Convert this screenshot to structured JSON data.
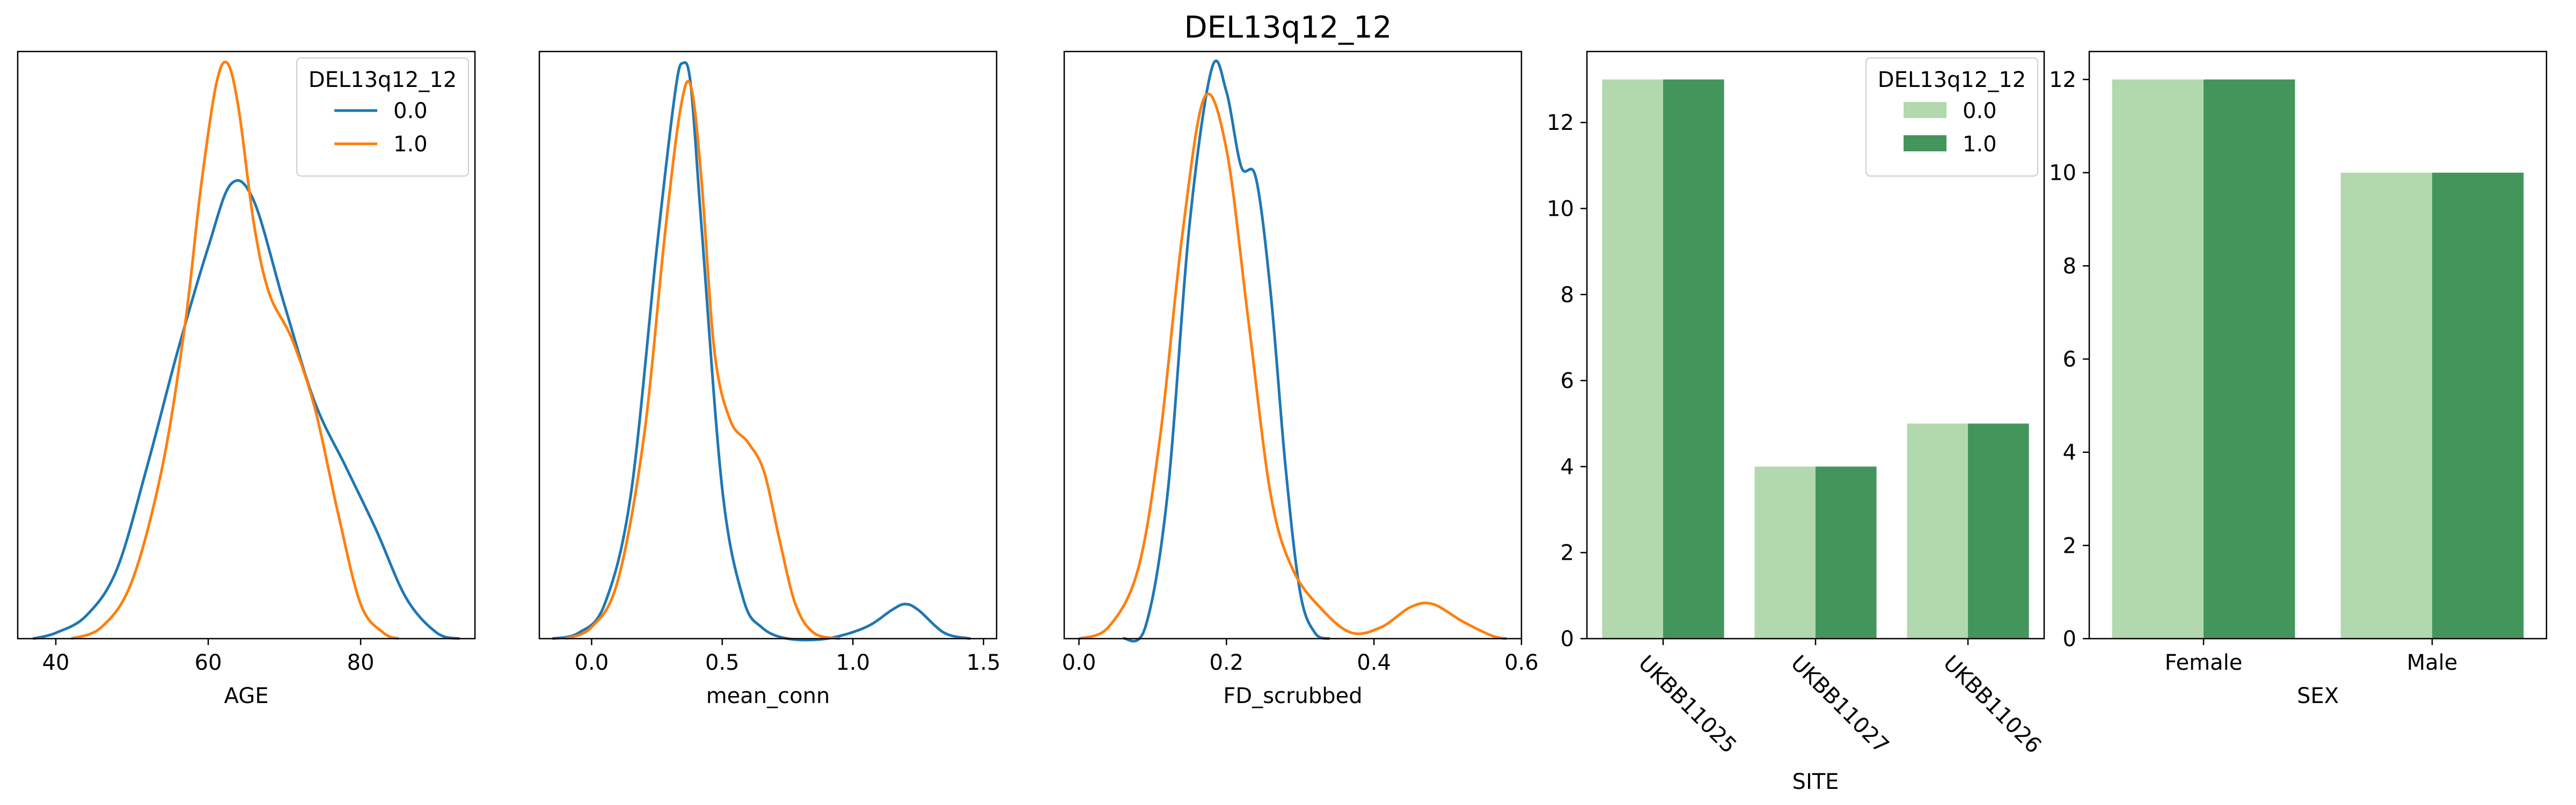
{
  "figure": {
    "title": "DEL13q12_12"
  },
  "colors": {
    "kde_0": "#1f77b4",
    "kde_1": "#ff7f0e",
    "bar_0": "#b2d8ae",
    "bar_1": "#44955b"
  },
  "chart_data": [
    {
      "type": "line",
      "xlabel": "AGE",
      "ylabel": "",
      "xlim": [
        35,
        95
      ],
      "xticks": [
        40,
        60,
        80
      ],
      "ylim": [
        0,
        1.02
      ],
      "legend": {
        "title": "DEL13q12_12",
        "placement": "top-right",
        "entries": [
          "0.0",
          "1.0"
        ]
      },
      "series": [
        {
          "name": "0.0",
          "x": [
            37,
            40,
            44,
            48,
            52,
            56,
            60,
            63,
            66,
            70,
            74,
            78,
            82,
            86,
            90,
            93
          ],
          "y": [
            0.0,
            0.01,
            0.04,
            0.12,
            0.3,
            0.5,
            0.68,
            0.79,
            0.76,
            0.58,
            0.41,
            0.3,
            0.19,
            0.07,
            0.01,
            0.0
          ]
        },
        {
          "name": "1.0",
          "x": [
            42,
            46,
            50,
            54,
            57,
            59,
            61,
            62.5,
            64,
            66,
            68,
            71,
            74,
            77,
            80,
            83,
            85
          ],
          "y": [
            0.0,
            0.02,
            0.1,
            0.3,
            0.55,
            0.78,
            0.96,
            1.0,
            0.92,
            0.72,
            0.6,
            0.52,
            0.4,
            0.22,
            0.06,
            0.01,
            0.0
          ]
        }
      ]
    },
    {
      "type": "line",
      "xlabel": "mean_conn",
      "ylabel": "",
      "xlim": [
        -0.2,
        1.55
      ],
      "xticks": [
        0.0,
        0.5,
        1.0,
        1.5
      ],
      "ylim": [
        0,
        1.02
      ],
      "series": [
        {
          "name": "0.0",
          "x": [
            -0.15,
            -0.05,
            0.05,
            0.15,
            0.25,
            0.32,
            0.35,
            0.38,
            0.42,
            0.5,
            0.58,
            0.65,
            0.75,
            0.9,
            1.05,
            1.15,
            1.2,
            1.25,
            1.35,
            1.45
          ],
          "y": [
            0.0,
            0.01,
            0.06,
            0.25,
            0.68,
            0.95,
            1.0,
            0.96,
            0.72,
            0.26,
            0.07,
            0.02,
            0.0,
            0.0,
            0.02,
            0.05,
            0.06,
            0.05,
            0.01,
            0.0
          ]
        },
        {
          "name": "1.0",
          "x": [
            -0.1,
            0.0,
            0.1,
            0.2,
            0.28,
            0.34,
            0.38,
            0.42,
            0.47,
            0.53,
            0.6,
            0.66,
            0.72,
            0.78,
            0.85,
            0.95
          ],
          "y": [
            0.0,
            0.02,
            0.1,
            0.35,
            0.7,
            0.92,
            0.96,
            0.8,
            0.5,
            0.38,
            0.34,
            0.29,
            0.17,
            0.06,
            0.01,
            0.0
          ]
        }
      ]
    },
    {
      "type": "line",
      "xlabel": "FD_scrubbed",
      "ylabel": "",
      "xlim": [
        -0.02,
        0.6
      ],
      "xticks": [
        0.0,
        0.2,
        0.4,
        0.6
      ],
      "ylim": [
        0,
        1.02
      ],
      "series": [
        {
          "name": "0.0",
          "x": [
            0.06,
            0.09,
            0.12,
            0.15,
            0.18,
            0.2,
            0.22,
            0.24,
            0.26,
            0.28,
            0.3,
            0.32,
            0.34
          ],
          "y": [
            0.0,
            0.02,
            0.25,
            0.72,
            0.99,
            0.95,
            0.82,
            0.8,
            0.6,
            0.3,
            0.08,
            0.01,
            0.0
          ]
        },
        {
          "name": "1.0",
          "x": [
            0.0,
            0.04,
            0.08,
            0.11,
            0.14,
            0.17,
            0.2,
            0.23,
            0.26,
            0.29,
            0.33,
            0.37,
            0.41,
            0.45,
            0.48,
            0.52,
            0.56,
            0.58
          ],
          "y": [
            0.0,
            0.02,
            0.12,
            0.35,
            0.7,
            0.94,
            0.85,
            0.55,
            0.25,
            0.12,
            0.05,
            0.01,
            0.02,
            0.055,
            0.06,
            0.03,
            0.005,
            0.0
          ]
        }
      ]
    },
    {
      "type": "bar",
      "xlabel": "SITE",
      "ylabel": "",
      "categories": [
        "UKBB11025",
        "UKBB11027",
        "UKBB11026"
      ],
      "ylim": [
        0,
        13.65
      ],
      "yticks": [
        0,
        2,
        4,
        6,
        8,
        10,
        12
      ],
      "legend": {
        "title": "DEL13q12_12",
        "placement": "top-right",
        "entries": [
          "0.0",
          "1.0"
        ]
      },
      "series": [
        {
          "name": "0.0",
          "values": [
            13,
            4,
            5
          ]
        },
        {
          "name": "1.0",
          "values": [
            13,
            4,
            5
          ]
        }
      ]
    },
    {
      "type": "bar",
      "xlabel": "SEX",
      "ylabel": "",
      "categories": [
        "Female",
        "Male"
      ],
      "ylim": [
        0,
        12.6
      ],
      "yticks": [
        0,
        2,
        4,
        6,
        8,
        10,
        12
      ],
      "series": [
        {
          "name": "0.0",
          "values": [
            12,
            10
          ]
        },
        {
          "name": "1.0",
          "values": [
            12,
            10
          ]
        }
      ]
    }
  ]
}
